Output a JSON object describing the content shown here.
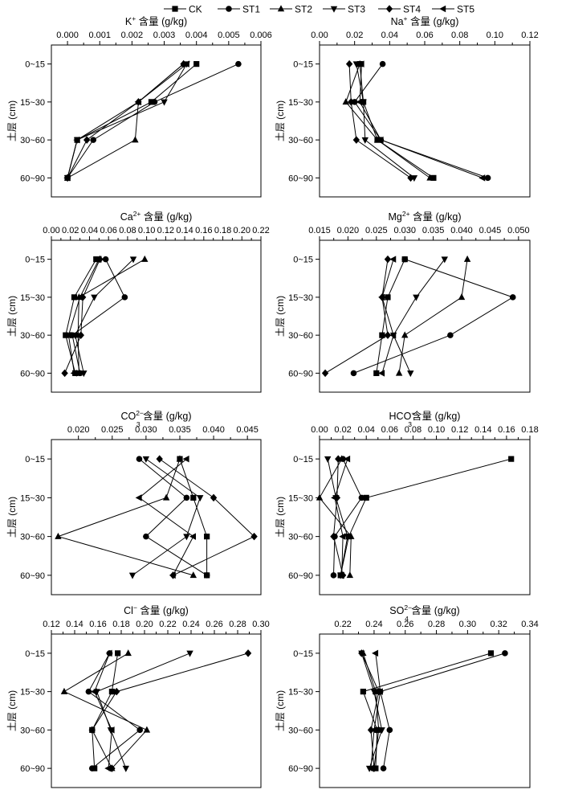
{
  "legend": {
    "entries": [
      {
        "name": "CK",
        "marker": "square"
      },
      {
        "name": "ST1",
        "marker": "circle"
      },
      {
        "name": "ST2",
        "marker": "triangle-up"
      },
      {
        "name": "ST3",
        "marker": "triangle-down"
      },
      {
        "name": "ST4",
        "marker": "diamond"
      },
      {
        "name": "ST5",
        "marker": "triangle-left"
      }
    ]
  },
  "ylabel": "土层 (cm)",
  "chart_data": [
    {
      "type": "line",
      "id": "K",
      "title": {
        "pre": "K",
        "sup": "+",
        "sub": "",
        "post": " 含量 (g/kg)"
      },
      "categories": [
        "0~15",
        "15~30",
        "30~60",
        "60~90"
      ],
      "xlim": [
        -0.0005,
        0.006
      ],
      "xticks": [
        0.0,
        0.001,
        0.002,
        0.003,
        0.004,
        0.005,
        0.006
      ],
      "tick_labels": [
        "0.000",
        "0.001",
        "0.002",
        "0.003",
        "0.004",
        "0.005",
        "0.006"
      ],
      "series": [
        {
          "name": "CK",
          "values": [
            0.004,
            0.0026,
            0.0003,
            0.0
          ]
        },
        {
          "name": "ST1",
          "values": [
            0.0053,
            0.0027,
            0.0008,
            0.0
          ]
        },
        {
          "name": "ST2",
          "values": [
            0.0036,
            0.0022,
            0.0021,
            0.0
          ]
        },
        {
          "name": "ST3",
          "values": [
            0.0037,
            0.003,
            0.0003,
            0.0
          ]
        },
        {
          "name": "ST4",
          "values": [
            0.0036,
            0.0022,
            0.0006,
            0.0
          ]
        },
        {
          "name": "ST5",
          "values": [
            0.0037,
            0.0022,
            0.0003,
            0.0
          ]
        }
      ]
    },
    {
      "type": "line",
      "id": "Na",
      "title": {
        "pre": "Na",
        "sup": "+",
        "sub": "",
        "post": " 含量 (g/kg)"
      },
      "categories": [
        "0~15",
        "15~30",
        "30~60",
        "60~90"
      ],
      "xlim": [
        0,
        0.12
      ],
      "xticks": [
        0.0,
        0.02,
        0.04,
        0.06,
        0.08,
        0.1,
        0.12
      ],
      "tick_labels": [
        "0.00",
        "0.02",
        "0.04",
        "0.06",
        "0.08",
        "0.10",
        "0.12"
      ],
      "series": [
        {
          "name": "CK",
          "values": [
            0.023,
            0.025,
            0.033,
            0.065
          ]
        },
        {
          "name": "ST1",
          "values": [
            0.036,
            0.02,
            0.035,
            0.096
          ]
        },
        {
          "name": "ST2",
          "values": [
            0.023,
            0.015,
            0.033,
            0.063
          ]
        },
        {
          "name": "ST3",
          "values": [
            0.021,
            0.025,
            0.026,
            0.054
          ]
        },
        {
          "name": "ST4",
          "values": [
            0.017,
            0.018,
            0.021,
            0.052
          ]
        },
        {
          "name": "ST5",
          "values": [
            0.024,
            0.023,
            0.035,
            0.093
          ]
        }
      ]
    },
    {
      "type": "line",
      "id": "Ca",
      "title": {
        "pre": "Ca",
        "sup": "2+",
        "sub": "",
        "post": " 含量 (g/kg)"
      },
      "categories": [
        "0~15",
        "15~30",
        "30~60",
        "60~90"
      ],
      "xlim": [
        0,
        0.22
      ],
      "xticks": [
        0.0,
        0.02,
        0.04,
        0.06,
        0.08,
        0.1,
        0.12,
        0.14,
        0.16,
        0.18,
        0.2,
        0.22
      ],
      "tick_labels": [
        "0.00",
        "0.02",
        "0.04",
        "0.06",
        "0.08",
        "0.10",
        "0.12",
        "0.14",
        "0.16",
        "0.18",
        "0.20",
        "0.22"
      ],
      "series": [
        {
          "name": "CK",
          "values": [
            0.047,
            0.024,
            0.015,
            0.025
          ]
        },
        {
          "name": "ST1",
          "values": [
            0.057,
            0.077,
            0.022,
            0.03
          ]
        },
        {
          "name": "ST2",
          "values": [
            0.098,
            0.029,
            0.028,
            0.029
          ]
        },
        {
          "name": "ST3",
          "values": [
            0.086,
            0.045,
            0.025,
            0.034
          ]
        },
        {
          "name": "ST4",
          "values": [
            0.051,
            0.033,
            0.031,
            0.014
          ]
        },
        {
          "name": "ST5",
          "values": [
            0.05,
            0.03,
            0.018,
            0.024
          ]
        }
      ]
    },
    {
      "type": "line",
      "id": "Mg",
      "title": {
        "pre": "Mg",
        "sup": "2+",
        "sub": "",
        "post": " 含量 (g/kg)"
      },
      "categories": [
        "0~15",
        "15~30",
        "30~60",
        "60~90"
      ],
      "xlim": [
        0.015,
        0.052
      ],
      "xticks": [
        0.015,
        0.02,
        0.025,
        0.03,
        0.035,
        0.04,
        0.045,
        0.05
      ],
      "tick_labels": [
        "0.015",
        "0.020",
        "0.025",
        "0.030",
        "0.035",
        "0.040",
        "0.045",
        "0.050"
      ],
      "series": [
        {
          "name": "CK",
          "values": [
            0.03,
            0.027,
            0.026,
            0.025
          ]
        },
        {
          "name": "ST1",
          "values": [
            0.03,
            0.049,
            0.038,
            0.021
          ]
        },
        {
          "name": "ST2",
          "values": [
            0.041,
            0.04,
            0.03,
            0.029
          ]
        },
        {
          "name": "ST3",
          "values": [
            0.037,
            0.032,
            0.028,
            0.031
          ]
        },
        {
          "name": "ST4",
          "values": [
            0.027,
            0.026,
            0.027,
            0.016
          ]
        },
        {
          "name": "ST5",
          "values": [
            0.028,
            0.026,
            0.028,
            0.026
          ]
        }
      ]
    },
    {
      "type": "line",
      "id": "CO3",
      "title": {
        "pre": "CO",
        "sup": "2−",
        "sub": "3",
        "post": " 含量 (g/kg)"
      },
      "categories": [
        "0~15",
        "15~30",
        "30~60",
        "60~90"
      ],
      "xlim": [
        0.016,
        0.047
      ],
      "xticks": [
        0.02,
        0.025,
        0.03,
        0.035,
        0.04,
        0.045
      ],
      "tick_labels": [
        "0.020",
        "0.025",
        "0.030",
        "0.035",
        "0.040",
        "0.045"
      ],
      "series": [
        {
          "name": "CK",
          "values": [
            0.035,
            0.037,
            0.039,
            0.039
          ]
        },
        {
          "name": "ST1",
          "values": [
            0.029,
            0.036,
            0.03,
            0.039
          ]
        },
        {
          "name": "ST2",
          "values": [
            0.035,
            0.033,
            0.017,
            0.037
          ]
        },
        {
          "name": "ST3",
          "values": [
            0.03,
            0.038,
            0.036,
            0.028
          ]
        },
        {
          "name": "ST4",
          "values": [
            0.032,
            0.04,
            0.046,
            0.034
          ]
        },
        {
          "name": "ST5",
          "values": [
            0.036,
            0.029,
            0.037,
            0.034
          ]
        }
      ]
    },
    {
      "type": "line",
      "id": "HCO3",
      "title": {
        "pre": "HCO",
        "sup": "−",
        "sub": "3",
        "post": "含量 (g/kg)"
      },
      "categories": [
        "0~15",
        "15~30",
        "30~60",
        "60~90"
      ],
      "xlim": [
        0,
        0.18
      ],
      "xticks": [
        0.0,
        0.02,
        0.04,
        0.06,
        0.08,
        0.1,
        0.12,
        0.14,
        0.16,
        0.18
      ],
      "tick_labels": [
        "0.00",
        "0.02",
        "0.04",
        "0.06",
        "0.08",
        "0.10",
        "0.12",
        "0.14",
        "0.16",
        "0.18"
      ],
      "series": [
        {
          "name": "CK",
          "values": [
            0.164,
            0.04,
            0.025,
            0.018
          ]
        },
        {
          "name": "ST1",
          "values": [
            0.02,
            0.036,
            0.013,
            0.012
          ]
        },
        {
          "name": "ST2",
          "values": [
            0.019,
            0.0,
            0.027,
            0.026
          ]
        },
        {
          "name": "ST3",
          "values": [
            0.007,
            0.014,
            0.024,
            0.018
          ]
        },
        {
          "name": "ST4",
          "values": [
            0.016,
            0.015,
            0.012,
            0.02
          ]
        },
        {
          "name": "ST5",
          "values": [
            0.024,
            0.013,
            0.02,
            0.019
          ]
        }
      ]
    },
    {
      "type": "line",
      "id": "Cl",
      "title": {
        "pre": "Cl",
        "sup": "−",
        "sub": "",
        "post": " 含量 (g/kg)"
      },
      "categories": [
        "0~15",
        "15~30",
        "30~60",
        "60~90"
      ],
      "xlim": [
        0.12,
        0.3
      ],
      "xticks": [
        0.12,
        0.14,
        0.16,
        0.18,
        0.2,
        0.22,
        0.24,
        0.26,
        0.28,
        0.3
      ],
      "tick_labels": [
        "0.12",
        "0.14",
        "0.16",
        "0.18",
        "0.20",
        "0.22",
        "0.24",
        "0.26",
        "0.28",
        "0.30"
      ],
      "series": [
        {
          "name": "CK",
          "values": [
            0.177,
            0.172,
            0.155,
            0.157
          ]
        },
        {
          "name": "ST1",
          "values": [
            0.17,
            0.152,
            0.196,
            0.155
          ]
        },
        {
          "name": "ST2",
          "values": [
            0.186,
            0.131,
            0.202,
            0.172
          ]
        },
        {
          "name": "ST3",
          "values": [
            0.239,
            0.159,
            0.171,
            0.184
          ]
        },
        {
          "name": "ST4",
          "values": [
            0.289,
            0.176,
            0.155,
            0.172
          ]
        },
        {
          "name": "ST5",
          "values": [
            0.17,
            0.157,
            0.172,
            0.169
          ]
        }
      ]
    },
    {
      "type": "line",
      "id": "SO4",
      "title": {
        "pre": "SO",
        "sup": "2−",
        "sub": "4",
        "post": " 含量 (g/kg)"
      },
      "categories": [
        "0~15",
        "15~30",
        "30~60",
        "60~90"
      ],
      "xlim": [
        0.205,
        0.34
      ],
      "xticks": [
        0.22,
        0.24,
        0.26,
        0.28,
        0.3,
        0.32,
        0.34
      ],
      "tick_labels": [
        "0.22",
        "0.24",
        "0.26",
        "0.28",
        "0.30",
        "0.32",
        "0.34"
      ],
      "series": [
        {
          "name": "CK",
          "values": [
            0.315,
            0.233,
            0.242,
            0.241
          ]
        },
        {
          "name": "ST1",
          "values": [
            0.324,
            0.244,
            0.25,
            0.246
          ]
        },
        {
          "name": "ST2",
          "values": [
            0.233,
            0.241,
            0.243,
            0.24
          ]
        },
        {
          "name": "ST3",
          "values": [
            0.232,
            0.24,
            0.245,
            0.237
          ]
        },
        {
          "name": "ST4",
          "values": [
            0.232,
            0.243,
            0.238,
            0.24
          ]
        },
        {
          "name": "ST5",
          "values": [
            0.241,
            0.244,
            0.24,
            0.238
          ]
        }
      ]
    }
  ]
}
